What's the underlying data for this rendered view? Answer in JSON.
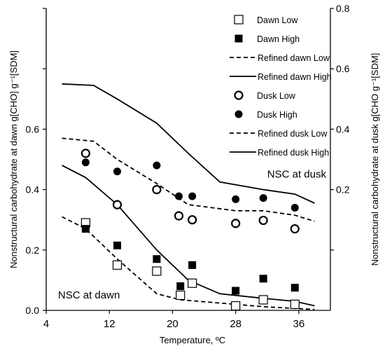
{
  "chart_data": {
    "type": "line",
    "title": "",
    "xlabel": "Temperature, ºC",
    "ylabel_left": "Nonstructural carbohydrate at dawn g[CHO] g⁻¹[SDM]",
    "ylabel_right": "Nonstructural carbohydrate at dusk g[CHO g⁻¹[SDM]",
    "xlim": [
      4,
      40
    ],
    "ylim_left": [
      0,
      1.0
    ],
    "ylim_right": [
      -0.2,
      0.8
    ],
    "xticks": [
      4,
      12,
      20,
      28,
      36
    ],
    "yticks_left": [
      0.0,
      0.2,
      0.4,
      0.6
    ],
    "yticks_left_labels": [
      "0.0",
      "0.2",
      "0.4",
      "0.6"
    ],
    "yticks_right": [
      0.2,
      0.4,
      0.6,
      0.8
    ],
    "yticks_right_labels": [
      "0.2",
      "0.4",
      "0.6",
      "0.8"
    ],
    "grid": false,
    "legend_position": "top-right",
    "annotations": [
      {
        "text": "NSC at dawn",
        "x": 5.5,
        "y": 0.04
      },
      {
        "text": "NSC at dusk",
        "x": 32,
        "y": 0.24
      }
    ],
    "series": [
      {
        "name": "Dawn Low",
        "axis": "left",
        "kind": "marker",
        "marker": "open-square",
        "points": [
          [
            9,
            0.29
          ],
          [
            13,
            0.15
          ],
          [
            18,
            0.13
          ],
          [
            21,
            0.05
          ],
          [
            22.5,
            0.09
          ],
          [
            28,
            0.015
          ],
          [
            31.5,
            0.035
          ],
          [
            35.5,
            0.02
          ]
        ]
      },
      {
        "name": "Dawn High",
        "axis": "left",
        "kind": "marker",
        "marker": "filled-square",
        "points": [
          [
            9,
            0.27
          ],
          [
            13,
            0.215
          ],
          [
            18,
            0.17
          ],
          [
            21,
            0.08
          ],
          [
            22.5,
            0.15
          ],
          [
            28,
            0.065
          ],
          [
            31.5,
            0.105
          ],
          [
            35.5,
            0.075
          ]
        ]
      },
      {
        "name": "Refined dawn Low",
        "axis": "left",
        "kind": "line",
        "dash": true,
        "points": [
          [
            6,
            0.31
          ],
          [
            9,
            0.27
          ],
          [
            13,
            0.17
          ],
          [
            18,
            0.055
          ],
          [
            21,
            0.035
          ],
          [
            28,
            0.02
          ],
          [
            31.5,
            0.012
          ],
          [
            38,
            0.003
          ]
        ]
      },
      {
        "name": "Refined dawn High",
        "axis": "left",
        "kind": "line",
        "dash": false,
        "points": [
          [
            6,
            0.48
          ],
          [
            9,
            0.44
          ],
          [
            13,
            0.35
          ],
          [
            18,
            0.2
          ],
          [
            22,
            0.1
          ],
          [
            26,
            0.055
          ],
          [
            31.5,
            0.04
          ],
          [
            35.5,
            0.03
          ],
          [
            38,
            0.015
          ]
        ]
      },
      {
        "name": "Dusk Low",
        "axis": "right",
        "kind": "marker",
        "marker": "open-circle",
        "points": [
          [
            9,
            0.32
          ],
          [
            13,
            0.15
          ],
          [
            18,
            0.2
          ],
          [
            20.8,
            0.113
          ],
          [
            22.5,
            0.1
          ],
          [
            28,
            0.088
          ],
          [
            31.5,
            0.098
          ],
          [
            35.5,
            0.07
          ]
        ]
      },
      {
        "name": "Dusk High",
        "axis": "right",
        "kind": "marker",
        "marker": "filled-circle",
        "points": [
          [
            9,
            0.29
          ],
          [
            13,
            0.26
          ],
          [
            18,
            0.28
          ],
          [
            20.8,
            0.178
          ],
          [
            22.5,
            0.178
          ],
          [
            28,
            0.168
          ],
          [
            31.5,
            0.172
          ],
          [
            35.5,
            0.14
          ]
        ]
      },
      {
        "name": "Refined dusk Low",
        "axis": "right",
        "kind": "line",
        "dash": true,
        "points": [
          [
            6,
            0.37
          ],
          [
            10,
            0.36
          ],
          [
            13,
            0.3
          ],
          [
            18,
            0.22
          ],
          [
            22,
            0.15
          ],
          [
            28,
            0.13
          ],
          [
            31.5,
            0.13
          ],
          [
            35.5,
            0.115
          ],
          [
            38,
            0.095
          ]
        ]
      },
      {
        "name": "Refined dusk High",
        "axis": "right",
        "kind": "line",
        "dash": false,
        "points": [
          [
            6,
            0.55
          ],
          [
            10,
            0.545
          ],
          [
            13,
            0.5
          ],
          [
            18,
            0.42
          ],
          [
            22,
            0.32
          ],
          [
            26,
            0.225
          ],
          [
            31.5,
            0.2
          ],
          [
            35.5,
            0.185
          ],
          [
            38,
            0.155
          ]
        ]
      }
    ]
  }
}
